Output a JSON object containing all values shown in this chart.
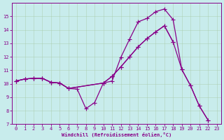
{
  "xlabel": "Windchill (Refroidissement éolien,°C)",
  "xlim": [
    -0.5,
    23.5
  ],
  "ylim": [
    7,
    16
  ],
  "yticks": [
    7,
    8,
    9,
    10,
    11,
    12,
    13,
    14,
    15
  ],
  "xticks": [
    0,
    1,
    2,
    3,
    4,
    5,
    6,
    7,
    8,
    9,
    10,
    11,
    12,
    13,
    14,
    15,
    16,
    17,
    18,
    19,
    20,
    21,
    22,
    23
  ],
  "bg_color": "#c8ecec",
  "line_color": "#880088",
  "grid_color": "#aaccaa",
  "line1_x": [
    0,
    1,
    2,
    3,
    4,
    5,
    6,
    7,
    8,
    9,
    10,
    11,
    12,
    13,
    14,
    15,
    16,
    17,
    18,
    19,
    20,
    21,
    22
  ],
  "line1_y": [
    10.2,
    10.35,
    10.4,
    10.4,
    10.1,
    10.05,
    9.65,
    9.6,
    8.15,
    8.6,
    10.05,
    10.2,
    11.95,
    13.3,
    14.6,
    14.85,
    15.35,
    15.55,
    14.75,
    11.05,
    9.85,
    8.35,
    7.3
  ],
  "line2_x": [
    0,
    1,
    2,
    3,
    4,
    5,
    6,
    10,
    11,
    12,
    13,
    14,
    15,
    16,
    17,
    18,
    19,
    20,
    21,
    22
  ],
  "line2_y": [
    10.2,
    10.35,
    10.4,
    10.4,
    10.1,
    10.05,
    9.65,
    10.05,
    10.55,
    11.25,
    12.0,
    12.75,
    13.35,
    13.85,
    14.3,
    13.1,
    11.05,
    9.85,
    8.35,
    7.3
  ],
  "line3_x": [
    0,
    1,
    2,
    3,
    4,
    5,
    6,
    10,
    11,
    12,
    13,
    14,
    15,
    16,
    17,
    18
  ],
  "line3_y": [
    10.2,
    10.35,
    10.4,
    10.4,
    10.1,
    10.05,
    9.65,
    10.05,
    10.55,
    11.25,
    12.0,
    12.75,
    13.35,
    13.85,
    14.3,
    13.1
  ]
}
